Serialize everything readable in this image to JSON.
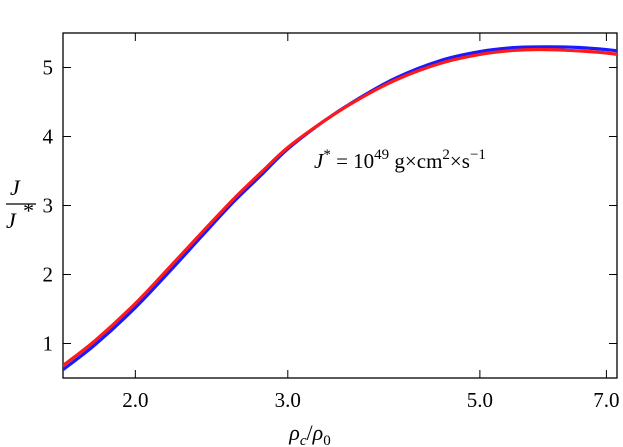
{
  "chart_data": {
    "type": "line",
    "x_scale": "log",
    "xlim": [
      1.65,
      7.2
    ],
    "ylim": [
      0.5,
      5.5
    ],
    "x_ticks": [
      {
        "value": 2.0,
        "label": "2.0"
      },
      {
        "value": 3.0,
        "label": "3.0"
      },
      {
        "value": 5.0,
        "label": "5.0"
      },
      {
        "value": 7.0,
        "label": "7.0"
      }
    ],
    "y_ticks": [
      {
        "value": 1,
        "label": "1"
      },
      {
        "value": 2,
        "label": "2"
      },
      {
        "value": 3,
        "label": "3"
      },
      {
        "value": 4,
        "label": "4"
      },
      {
        "value": 5,
        "label": "5"
      }
    ],
    "xlabel": {
      "rho": "ρ",
      "c": "c",
      "slash": "/",
      "rho0": "ρ",
      "zero": "0"
    },
    "ylabel": {
      "num": "J",
      "den": "J",
      "star": "*"
    },
    "annotation": {
      "J": "J",
      "star": "*",
      "eq": " = 10",
      "exp49": "49",
      "g": " g×cm",
      "sq": "2",
      "times_s": "×s",
      "exp_m1": "−1"
    },
    "grid": false,
    "series": [
      {
        "color": "#1a1aff",
        "x": [
          1.65,
          1.8,
          2.0,
          2.2,
          2.4,
          2.6,
          2.8,
          3.0,
          3.3,
          3.6,
          4.0,
          4.5,
          5.0,
          5.5,
          6.0,
          6.5,
          7.0,
          7.2
        ],
        "y": [
          0.62,
          0.99,
          1.52,
          2.07,
          2.59,
          3.06,
          3.45,
          3.82,
          4.22,
          4.53,
          4.85,
          5.1,
          5.23,
          5.29,
          5.3,
          5.29,
          5.26,
          5.24
        ]
      },
      {
        "color": "#ff1a1a",
        "x": [
          1.65,
          1.8,
          2.0,
          2.2,
          2.4,
          2.6,
          2.8,
          3.0,
          3.3,
          3.6,
          4.0,
          4.5,
          5.0,
          5.5,
          6.0,
          6.5,
          7.0,
          7.2
        ],
        "y": [
          0.68,
          1.05,
          1.58,
          2.13,
          2.64,
          3.1,
          3.49,
          3.84,
          4.22,
          4.52,
          4.82,
          5.06,
          5.19,
          5.25,
          5.26,
          5.24,
          5.21,
          5.19
        ]
      }
    ]
  }
}
